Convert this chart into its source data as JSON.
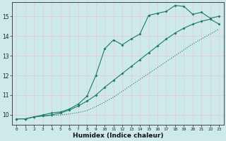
{
  "xlabel": "Humidex (Indice chaleur)",
  "xlim": [
    -0.5,
    23.5
  ],
  "ylim": [
    9.5,
    15.7
  ],
  "xticks": [
    0,
    1,
    2,
    3,
    4,
    5,
    6,
    7,
    8,
    9,
    10,
    11,
    12,
    13,
    14,
    15,
    16,
    17,
    18,
    19,
    20,
    21,
    22,
    23
  ],
  "yticks": [
    10,
    11,
    12,
    13,
    14,
    15
  ],
  "background_color": "#cde9e9",
  "grid_color": "#b8d8d8",
  "line_color": "#1a7a6e",
  "line1_x": [
    0,
    1,
    2,
    3,
    4,
    5,
    6,
    7,
    8,
    9,
    10,
    11,
    12,
    13,
    14,
    15,
    16,
    17,
    18,
    19,
    20,
    21,
    22,
    23
  ],
  "line1_y": [
    9.8,
    9.8,
    9.9,
    10.0,
    10.1,
    10.15,
    10.3,
    10.55,
    10.95,
    12.0,
    13.35,
    13.8,
    13.55,
    13.85,
    14.1,
    15.05,
    15.15,
    15.25,
    15.55,
    15.5,
    15.1,
    15.2,
    14.9,
    15.0
  ],
  "line1_no_marker_start": 0,
  "line2_x": [
    0,
    1,
    2,
    3,
    4,
    5,
    6,
    7,
    8,
    9,
    10,
    11,
    12,
    13,
    14,
    15,
    16,
    17,
    18,
    19,
    20,
    21,
    22,
    23
  ],
  "line2_y": [
    9.8,
    9.8,
    9.9,
    9.95,
    10.0,
    10.1,
    10.25,
    10.45,
    10.7,
    11.0,
    11.4,
    11.75,
    12.1,
    12.45,
    12.8,
    13.15,
    13.5,
    13.85,
    14.15,
    14.4,
    14.6,
    14.75,
    14.85,
    14.6
  ],
  "line3_x": [
    0,
    1,
    2,
    3,
    4,
    5,
    6,
    7,
    8,
    9,
    10,
    11,
    12,
    13,
    14,
    15,
    16,
    17,
    18,
    19,
    20,
    21,
    22,
    23
  ],
  "line3_y": [
    9.8,
    9.8,
    9.9,
    9.93,
    9.97,
    10.0,
    10.05,
    10.12,
    10.22,
    10.42,
    10.65,
    10.9,
    11.2,
    11.5,
    11.8,
    12.1,
    12.4,
    12.7,
    13.0,
    13.3,
    13.6,
    13.85,
    14.1,
    14.35
  ]
}
